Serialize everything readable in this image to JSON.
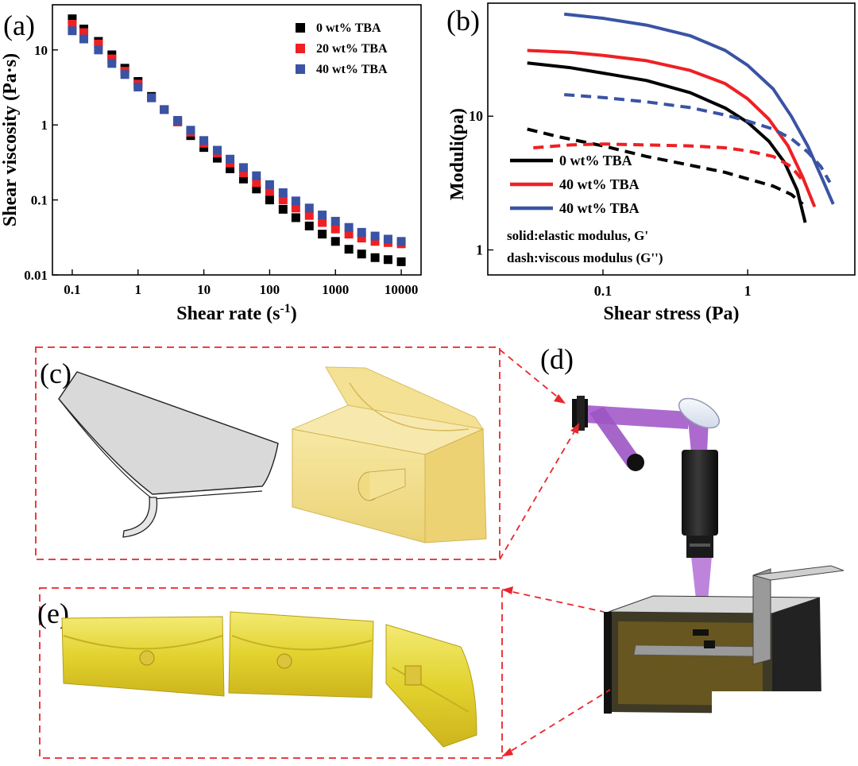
{
  "panels": {
    "a": "(a)",
    "b": "(b)",
    "c": "(c)",
    "d": "(d)",
    "e": "(e)"
  },
  "colors": {
    "black": "#000000",
    "red": "#ee2024",
    "blue": "#3a53a4",
    "resin": "#f1dd86",
    "laser": "#a45ac9",
    "dash_frame": "#e8262d"
  },
  "chart_data": [
    {
      "type": "scatter",
      "panel": "(a)",
      "xlabel": "Shear rate (s",
      "xlabel_sup": "-1",
      "xlabel_close": ")",
      "ylabel": "Shear viscosity (Pa·s)",
      "xscale": "log",
      "yscale": "log",
      "xlim": [
        0.05,
        20000
      ],
      "ylim": [
        0.01,
        40
      ],
      "x_ticks": [
        "0.1",
        "1",
        "10",
        "100",
        "1000",
        "10000"
      ],
      "y_ticks": [
        "0.01",
        "0.1",
        "1",
        "10"
      ],
      "legend_position": "top-right",
      "x": [
        0.1,
        0.15,
        0.25,
        0.4,
        0.63,
        1.0,
        1.6,
        2.5,
        4.0,
        6.3,
        10,
        16,
        25,
        40,
        63,
        100,
        160,
        250,
        400,
        630,
        1000,
        1600,
        2500,
        4000,
        6300,
        10000
      ],
      "series": [
        {
          "name": "0 wt% TBA",
          "color": "#000000",
          "values": [
            26,
            19,
            13,
            8.6,
            5.7,
            3.8,
            2.4,
            1.6,
            1.1,
            0.72,
            0.5,
            0.36,
            0.26,
            0.19,
            0.14,
            0.1,
            0.075,
            0.058,
            0.045,
            0.035,
            0.028,
            0.022,
            0.019,
            0.017,
            0.016,
            0.015
          ]
        },
        {
          "name": "20 wt% TBA",
          "color": "#ee2024",
          "values": [
            22,
            17,
            12,
            7.6,
            5.2,
            3.5,
            2.3,
            1.6,
            1.1,
            0.8,
            0.57,
            0.42,
            0.31,
            0.23,
            0.17,
            0.13,
            0.1,
            0.078,
            0.062,
            0.05,
            0.041,
            0.035,
            0.031,
            0.028,
            0.027,
            0.026
          ]
        },
        {
          "name": "40 wt% TBA",
          "color": "#3a53a4",
          "values": [
            18,
            14,
            10,
            6.6,
            4.7,
            3.2,
            2.3,
            1.6,
            1.15,
            0.85,
            0.62,
            0.46,
            0.35,
            0.27,
            0.21,
            0.16,
            0.125,
            0.097,
            0.078,
            0.063,
            0.052,
            0.043,
            0.037,
            0.033,
            0.03,
            0.028
          ]
        }
      ]
    },
    {
      "type": "line",
      "panel": "(b)",
      "xlabel": "Shear stress (Pa)",
      "ylabel": "Moduli(pa)",
      "xscale": "log",
      "yscale": "log",
      "xlim": [
        0.016,
        5.5
      ],
      "ylim": [
        0.65,
        70
      ],
      "x_ticks": [
        "0.1",
        "1"
      ],
      "y_ticks": [
        "1",
        "10"
      ],
      "legend_position": "bottom-left",
      "legend_notes": [
        "solid:elastic modulus, G'",
        "dash:viscous modulus (G'')"
      ],
      "series": [
        {
          "name": "0 wt% TBA",
          "color": "#000000",
          "style": "solid",
          "x": [
            0.03,
            0.06,
            0.1,
            0.2,
            0.4,
            0.7,
            1.0,
            1.4,
            1.8,
            2.2,
            2.5
          ],
          "y": [
            25,
            23,
            21,
            18.5,
            15,
            11.5,
            9,
            6.5,
            4.5,
            2.8,
            1.6
          ]
        },
        {
          "name": "0 wt% TBA",
          "color": "#000000",
          "style": "dash",
          "x": [
            0.03,
            0.05,
            0.1,
            0.2,
            0.4,
            0.7,
            1.0,
            1.5,
            2.0,
            2.4
          ],
          "y": [
            8,
            7,
            6,
            5,
            4.3,
            3.8,
            3.4,
            3.0,
            2.6,
            2.2
          ]
        },
        {
          "name": "40 wt% TBA",
          "color": "#ee2024",
          "style": "solid",
          "x": [
            0.03,
            0.06,
            0.1,
            0.2,
            0.4,
            0.7,
            1.0,
            1.4,
            1.9,
            2.4,
            2.9
          ],
          "y": [
            31,
            30,
            28.5,
            26,
            22,
            17.5,
            13.5,
            9.5,
            6,
            3.5,
            2.1
          ]
        },
        {
          "name": "40 wt% TBA",
          "color": "#ee2024",
          "style": "dash",
          "x": [
            0.033,
            0.06,
            0.1,
            0.2,
            0.4,
            0.7,
            1.0,
            1.5,
            2.0,
            2.4
          ],
          "y": [
            5.8,
            6.1,
            6.2,
            6.1,
            6.0,
            5.8,
            5.5,
            5.0,
            4.2,
            3.3
          ]
        },
        {
          "name": "40 wt% TBA",
          "color": "#3a53a4",
          "style": "solid",
          "x": [
            0.054,
            0.1,
            0.2,
            0.4,
            0.7,
            1.0,
            1.5,
            2.0,
            2.6,
            3.2,
            3.9
          ],
          "y": [
            58,
            54,
            48,
            40,
            31,
            24,
            16,
            10,
            6,
            3.6,
            2.2
          ]
        },
        {
          "name": "40 wt% TBA",
          "color": "#3a53a4",
          "style": "dash",
          "x": [
            0.054,
            0.1,
            0.2,
            0.4,
            0.7,
            1.0,
            1.5,
            2.0,
            2.6,
            3.2,
            3.7
          ],
          "y": [
            14.5,
            13.8,
            12.8,
            11.6,
            10.2,
            9.2,
            8.0,
            6.8,
            5.4,
            4.2,
            3.2
          ]
        }
      ]
    }
  ]
}
